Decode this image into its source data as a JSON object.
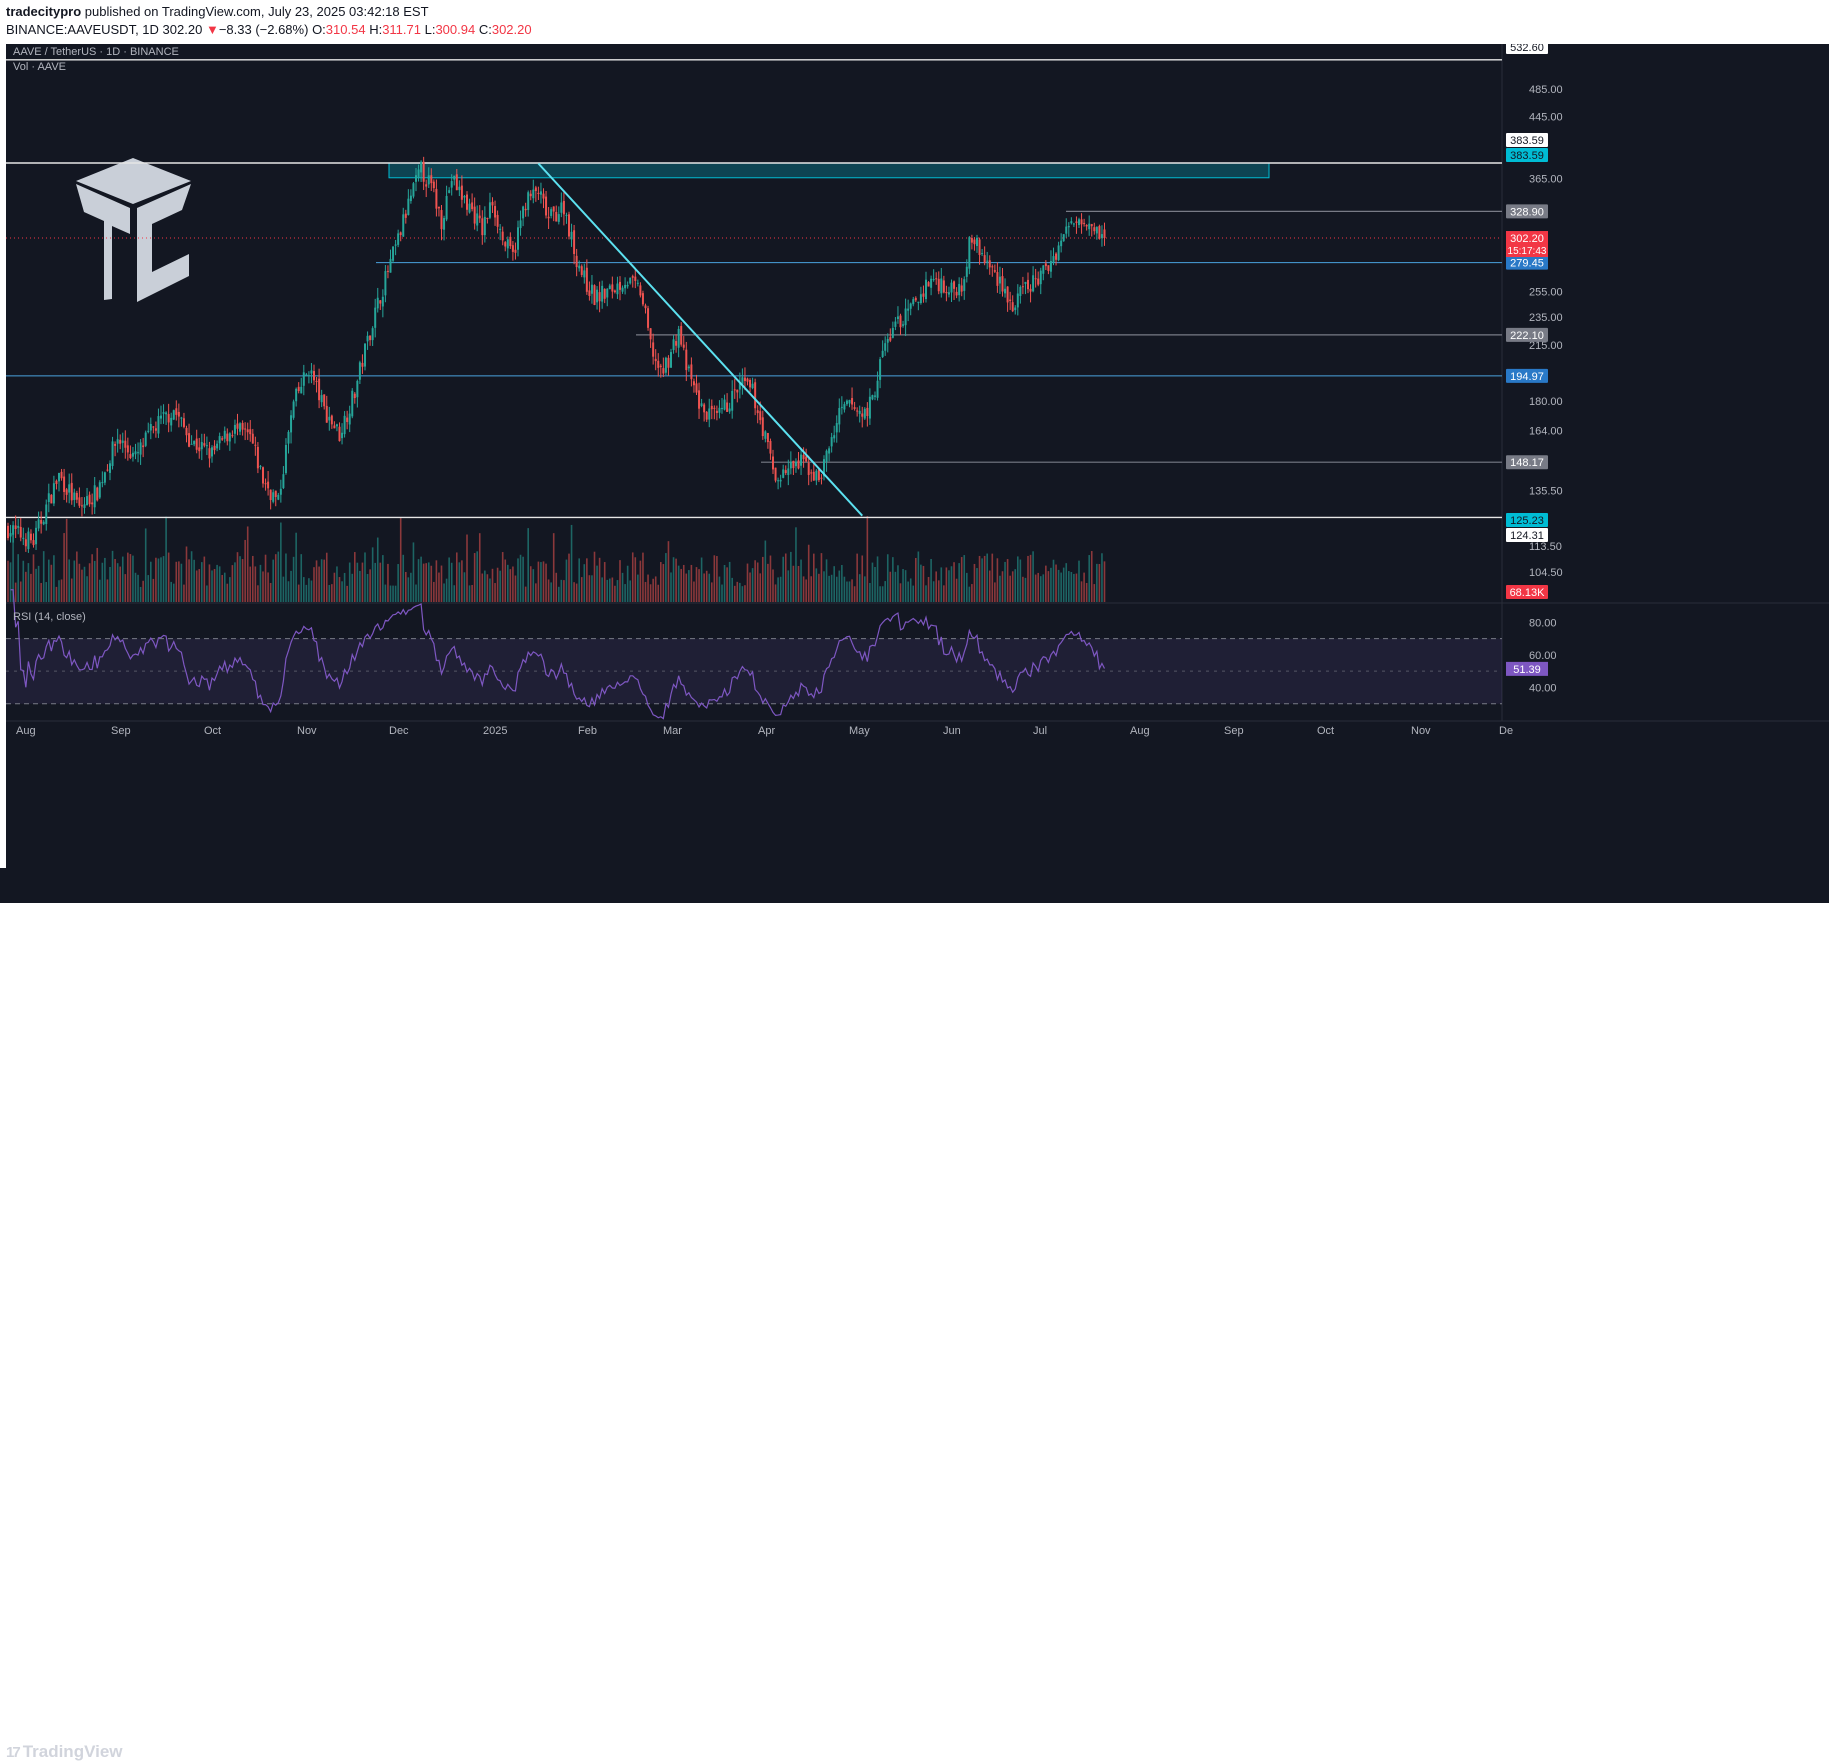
{
  "header": {
    "publisher": "tradecitypro",
    "published_text": "published on TradingView.com, July 23, 2025 03:42:18 EST",
    "symbol": "BINANCE:AAVEUSDT, 1D",
    "last": "302.20",
    "change_arrow": "▼",
    "change": "−8.33 (−2.68%)",
    "o_label": "O:",
    "o": "310.54",
    "h_label": "H:",
    "h": "311.71",
    "l_label": "L:",
    "l": "300.94",
    "c_label": "C:",
    "c": "302.20"
  },
  "footer": {
    "brand": "TradingView",
    "logo_glyph": "17"
  },
  "colors": {
    "bg": "#131722",
    "up": "#26a69a",
    "down": "#ef5350",
    "zone": "#00bcd4",
    "trendline": "#5ce1f0",
    "rsi": "#7e57c2"
  },
  "chart_data": {
    "type": "candlestick",
    "title": "AAVE / TetherUS · 1D · BINANCE",
    "volume_label": "Vol · AAVE",
    "y_scale": "log",
    "ylim": [
      95,
      560
    ],
    "y_ticks": [
      "485.00",
      "445.00",
      "365.00",
      "255.00",
      "235.00",
      "215.00",
      "180.00",
      "164.00",
      "135.50",
      "113.50",
      "104.50"
    ],
    "x_ticks": [
      "Aug",
      "Sep",
      "Oct",
      "Nov",
      "Dec",
      "2025",
      "Feb",
      "Mar",
      "Apr",
      "May",
      "Jun",
      "Jul",
      "Aug",
      "Sep",
      "Oct",
      "Nov",
      "De"
    ],
    "price_path": [
      {
        "day": 0,
        "price": 120
      },
      {
        "day": 10,
        "price": 115
      },
      {
        "day": 20,
        "price": 142
      },
      {
        "day": 28,
        "price": 128
      },
      {
        "day": 35,
        "price": 135
      },
      {
        "day": 43,
        "price": 160
      },
      {
        "day": 50,
        "price": 150
      },
      {
        "day": 57,
        "price": 165
      },
      {
        "day": 65,
        "price": 175
      },
      {
        "day": 72,
        "price": 158
      },
      {
        "day": 80,
        "price": 152
      },
      {
        "day": 88,
        "price": 165
      },
      {
        "day": 95,
        "price": 160
      },
      {
        "day": 100,
        "price": 140
      },
      {
        "day": 106,
        "price": 130
      },
      {
        "day": 112,
        "price": 178
      },
      {
        "day": 118,
        "price": 200
      },
      {
        "day": 124,
        "price": 175
      },
      {
        "day": 130,
        "price": 162
      },
      {
        "day": 136,
        "price": 185
      },
      {
        "day": 142,
        "price": 225
      },
      {
        "day": 148,
        "price": 265
      },
      {
        "day": 153,
        "price": 300
      },
      {
        "day": 158,
        "price": 345
      },
      {
        "day": 162,
        "price": 375
      },
      {
        "day": 166,
        "price": 355
      },
      {
        "day": 170,
        "price": 320
      },
      {
        "day": 174,
        "price": 365
      },
      {
        "day": 178,
        "price": 345
      },
      {
        "day": 182,
        "price": 330
      },
      {
        "day": 186,
        "price": 310
      },
      {
        "day": 190,
        "price": 340
      },
      {
        "day": 194,
        "price": 300
      },
      {
        "day": 198,
        "price": 285
      },
      {
        "day": 203,
        "price": 340
      },
      {
        "day": 208,
        "price": 350
      },
      {
        "day": 212,
        "price": 320
      },
      {
        "day": 218,
        "price": 335
      },
      {
        "day": 222,
        "price": 290
      },
      {
        "day": 226,
        "price": 265
      },
      {
        "day": 230,
        "price": 250
      },
      {
        "day": 236,
        "price": 255
      },
      {
        "day": 242,
        "price": 265
      },
      {
        "day": 248,
        "price": 255
      },
      {
        "day": 252,
        "price": 215
      },
      {
        "day": 256,
        "price": 195
      },
      {
        "day": 260,
        "price": 210
      },
      {
        "day": 263,
        "price": 225
      },
      {
        "day": 266,
        "price": 200
      },
      {
        "day": 272,
        "price": 175
      },
      {
        "day": 278,
        "price": 170
      },
      {
        "day": 283,
        "price": 180
      },
      {
        "day": 288,
        "price": 190
      },
      {
        "day": 292,
        "price": 185
      },
      {
        "day": 296,
        "price": 165
      },
      {
        "day": 301,
        "price": 140
      },
      {
        "day": 306,
        "price": 145
      },
      {
        "day": 312,
        "price": 148
      },
      {
        "day": 318,
        "price": 140
      },
      {
        "day": 322,
        "price": 155
      },
      {
        "day": 326,
        "price": 172
      },
      {
        "day": 330,
        "price": 178
      },
      {
        "day": 335,
        "price": 172
      },
      {
        "day": 339,
        "price": 180
      },
      {
        "day": 343,
        "price": 210
      },
      {
        "day": 348,
        "price": 230
      },
      {
        "day": 352,
        "price": 235
      },
      {
        "day": 357,
        "price": 250
      },
      {
        "day": 362,
        "price": 265
      },
      {
        "day": 366,
        "price": 262
      },
      {
        "day": 370,
        "price": 255
      },
      {
        "day": 374,
        "price": 262
      },
      {
        "day": 378,
        "price": 305
      },
      {
        "day": 382,
        "price": 285
      },
      {
        "day": 386,
        "price": 272
      },
      {
        "day": 390,
        "price": 262
      },
      {
        "day": 394,
        "price": 240
      },
      {
        "day": 398,
        "price": 255
      },
      {
        "day": 402,
        "price": 262
      },
      {
        "day": 406,
        "price": 270
      },
      {
        "day": 410,
        "price": 285
      },
      {
        "day": 414,
        "price": 305
      },
      {
        "day": 418,
        "price": 320
      },
      {
        "day": 422,
        "price": 325
      },
      {
        "day": 426,
        "price": 315
      },
      {
        "day": 430,
        "price": 302.2
      }
    ],
    "last_day": 430,
    "rsi": {
      "label": "RSI (14, close)",
      "ylim": [
        20,
        90
      ],
      "upper": 70,
      "lower": 30,
      "y_ticks": [
        "80.00",
        "60.00",
        "40.00"
      ],
      "value": "51.39"
    },
    "horizontal_levels": [
      {
        "price": 532.6,
        "label": "532.60",
        "style": "white"
      },
      {
        "price": 383.59,
        "label": "383.59",
        "style": "white"
      },
      {
        "price": 328.9,
        "label": "328.90",
        "style": "gray"
      },
      {
        "price": 279.45,
        "label": "279.45",
        "style": "blue"
      },
      {
        "price": 222.1,
        "label": "222.10",
        "style": "gray"
      },
      {
        "price": 194.97,
        "label": "194.97",
        "style": "blue"
      },
      {
        "price": 148.17,
        "label": "148.17",
        "style": "gray"
      },
      {
        "price": 124.31,
        "label": "124.31",
        "style": "white"
      }
    ],
    "resistance_zone": {
      "from": 366,
      "to": 383.59,
      "label": "383.59"
    },
    "support_label": {
      "price": 125.23,
      "label": "125.23"
    },
    "trendline": {
      "start_day": 208,
      "start_price": 383,
      "end_day": 335,
      "end_price": 125
    },
    "current_price": {
      "price": 302.2,
      "label": "302.20",
      "countdown": "15:17:43"
    },
    "volume_value": "68.13K"
  }
}
